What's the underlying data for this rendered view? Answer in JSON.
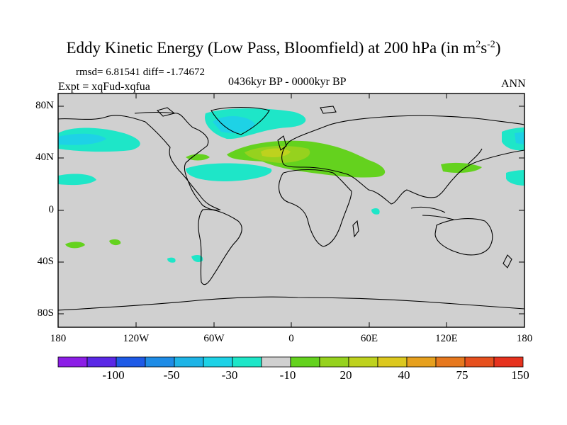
{
  "title": {
    "main": "Eddy Kinetic Energy (Low Pass, Bloomfield) at 200 hPa (in m",
    "sup1": "2",
    "mid": "s",
    "sup2": "-2",
    "end": ")"
  },
  "stats": {
    "rmsd_text": "rmsd= 6.81541 diff= -1.74672"
  },
  "experiment": "Expt = xqFud-xqfua",
  "period": "0436kyr BP - 0000kyr BP",
  "season": "ANN",
  "map": {
    "lat_ticks": [
      "80N",
      "40N",
      "0",
      "40S",
      "80S"
    ],
    "lon_ticks": [
      "180",
      "120W",
      "60W",
      "0",
      "60E",
      "120E",
      "180"
    ],
    "background_color": "#d0d0d0"
  },
  "colorbar": {
    "colors": [
      "#8c1ee6",
      "#5a28e6",
      "#1e5ae6",
      "#1e8ce6",
      "#1eb4e6",
      "#1ed2e6",
      "#1ee6c8",
      "#d0d0d0",
      "#64d21e",
      "#96d21e",
      "#bed21e",
      "#dcc81e",
      "#e6a01e",
      "#e6781e",
      "#e6501e",
      "#e6321e"
    ],
    "labels": [
      "-100",
      "-50",
      "-30",
      "-10",
      "20",
      "40",
      "75",
      "150"
    ]
  }
}
